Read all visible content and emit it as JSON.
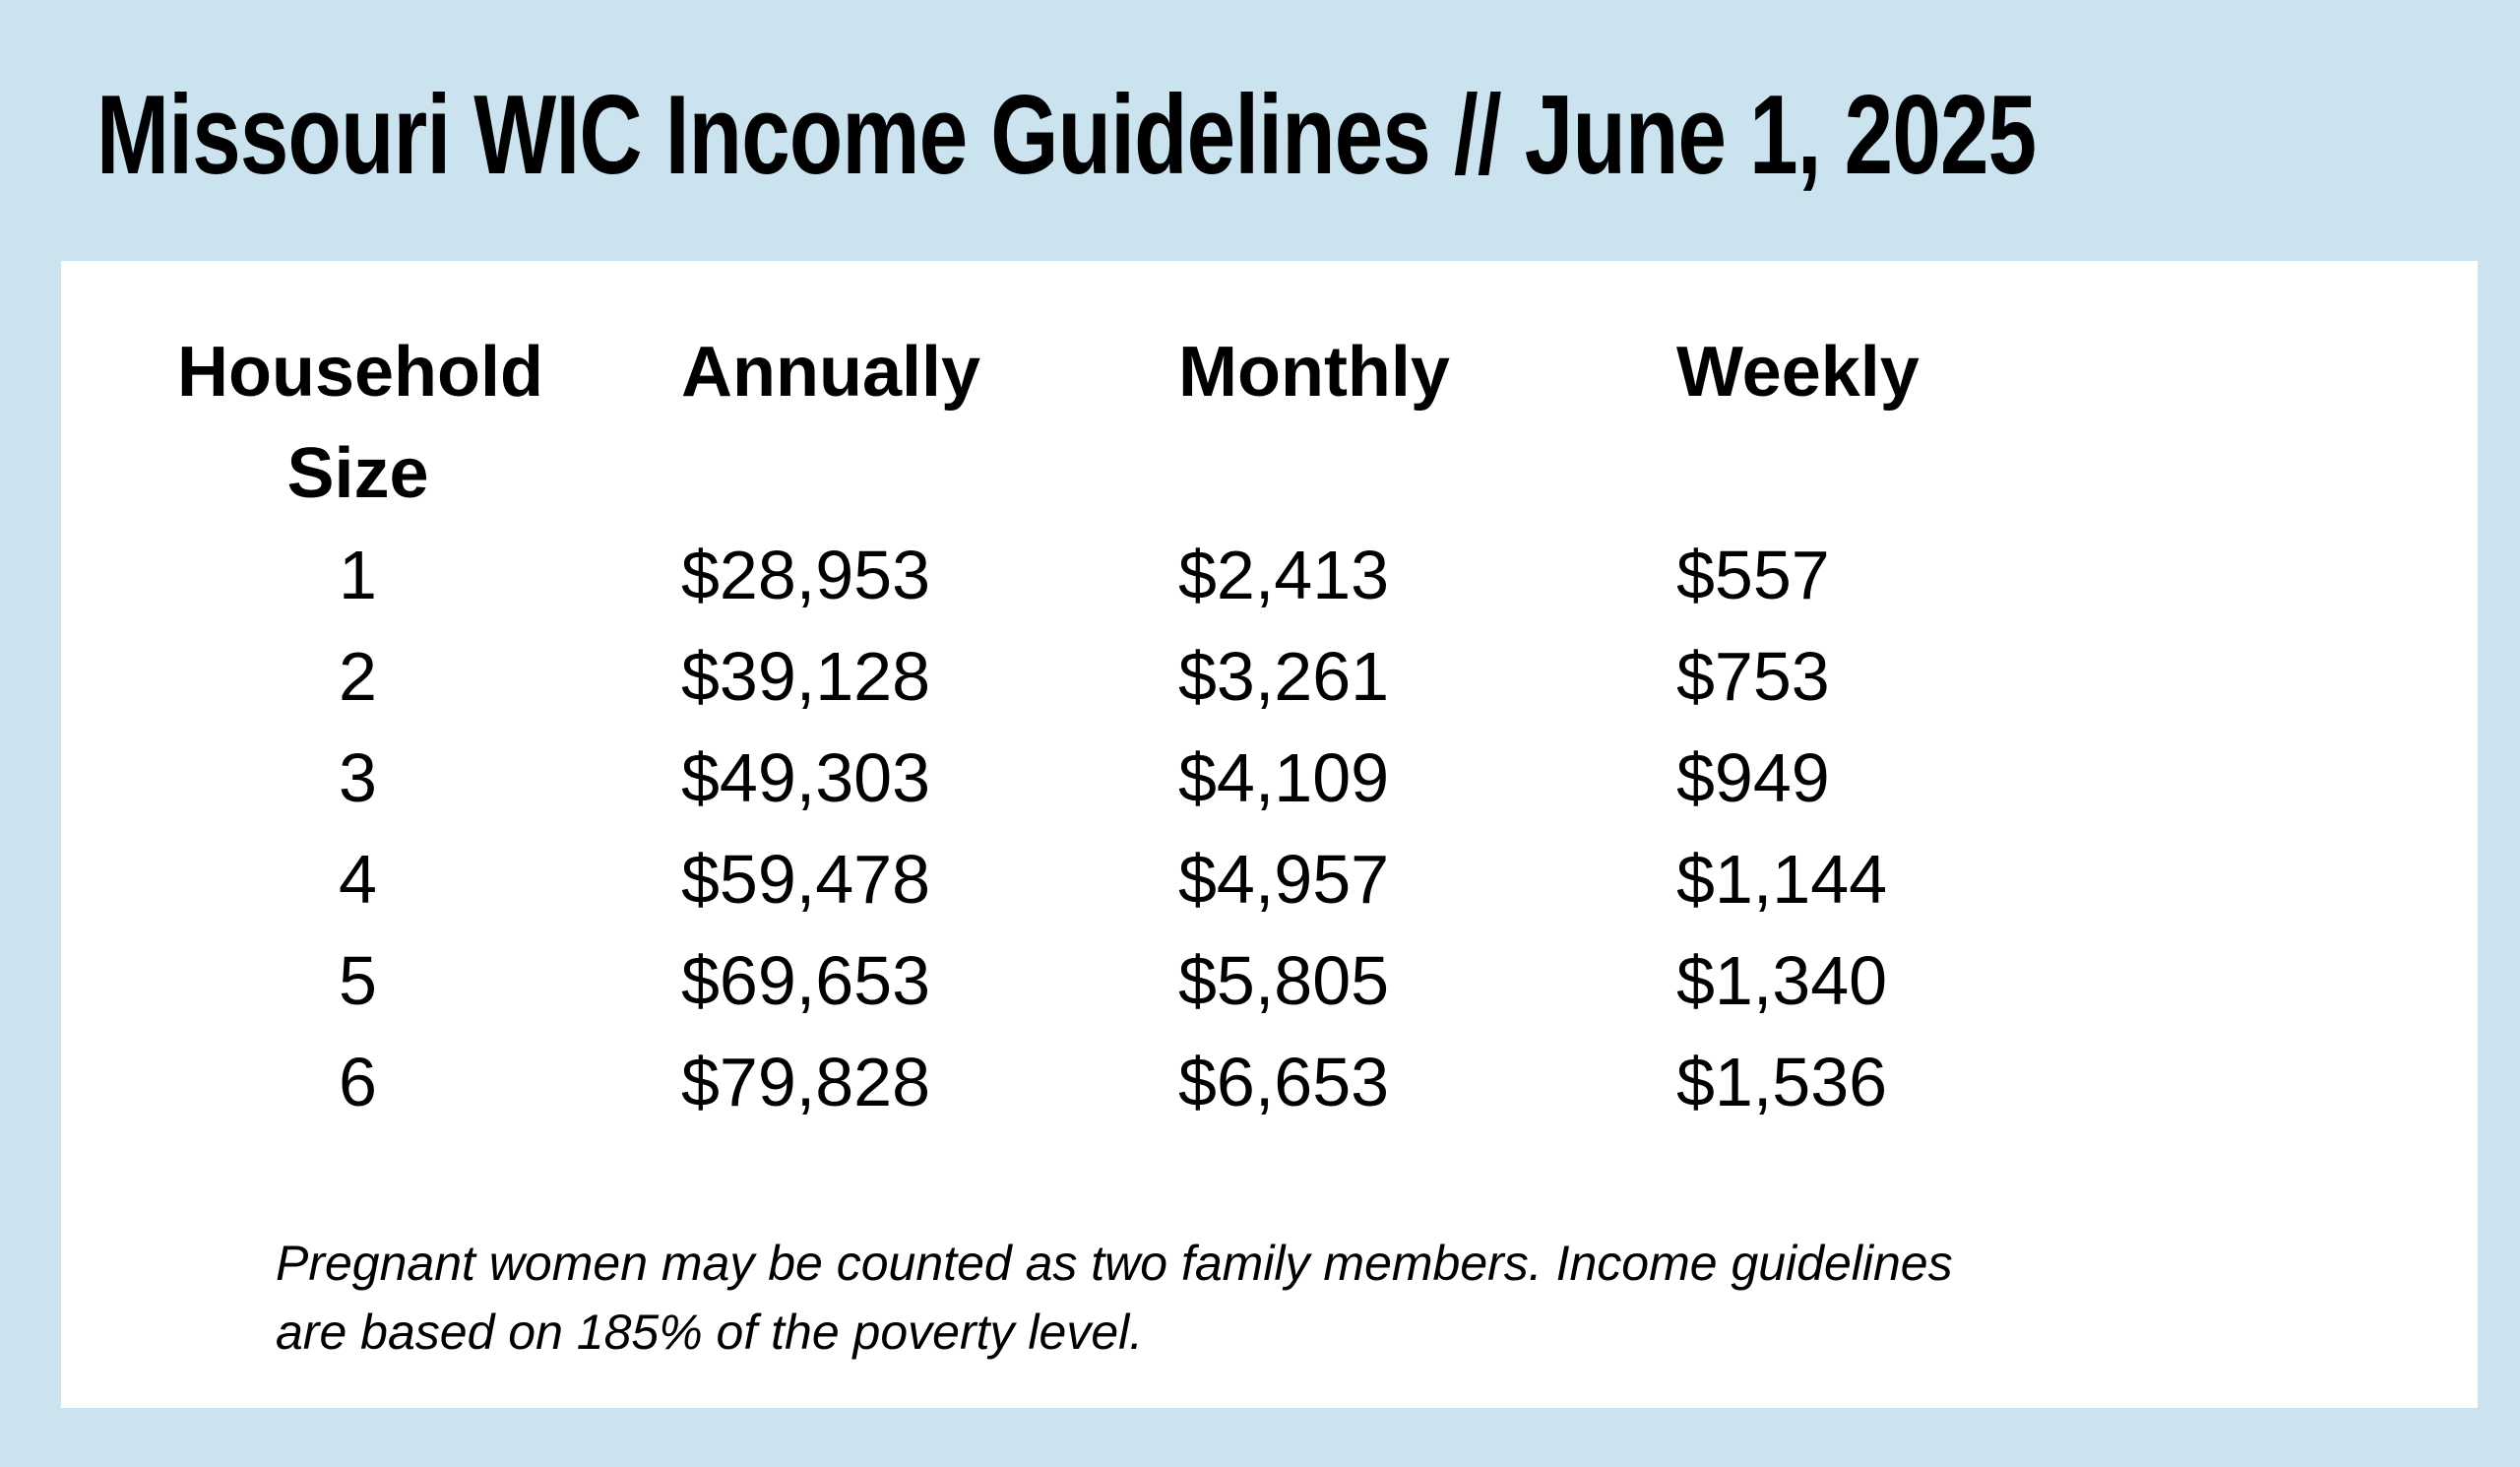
{
  "page": {
    "title": "Missouri WIC Income Guidelines // June 1, 2025",
    "background_color": "#cbe2ef",
    "card_color": "#ffffff",
    "text_color": "#000000"
  },
  "table": {
    "header": {
      "household": "Household",
      "size": "Size",
      "annually": "Annually",
      "monthly": "Monthly",
      "weekly": "Weekly"
    },
    "rows": [
      {
        "household_size": "1",
        "annually": "$28,953",
        "monthly": "$2,413",
        "weekly": "$557"
      },
      {
        "household_size": "2",
        "annually": "$39,128",
        "monthly": "$3,261",
        "weekly": "$753"
      },
      {
        "household_size": "3",
        "annually": "$49,303",
        "monthly": "$4,109",
        "weekly": "$949"
      },
      {
        "household_size": "4",
        "annually": "$59,478",
        "monthly": "$4,957",
        "weekly": "$1,144"
      },
      {
        "household_size": "5",
        "annually": "$69,653",
        "monthly": "$5,805",
        "weekly": "$1,340"
      },
      {
        "household_size": "6",
        "annually": "$79,828",
        "monthly": "$6,653",
        "weekly": "$1,536"
      }
    ]
  },
  "footnote": {
    "line1": "Pregnant women may be counted as two family members. Income guidelines",
    "line2": "are based on 185% of the poverty level."
  }
}
